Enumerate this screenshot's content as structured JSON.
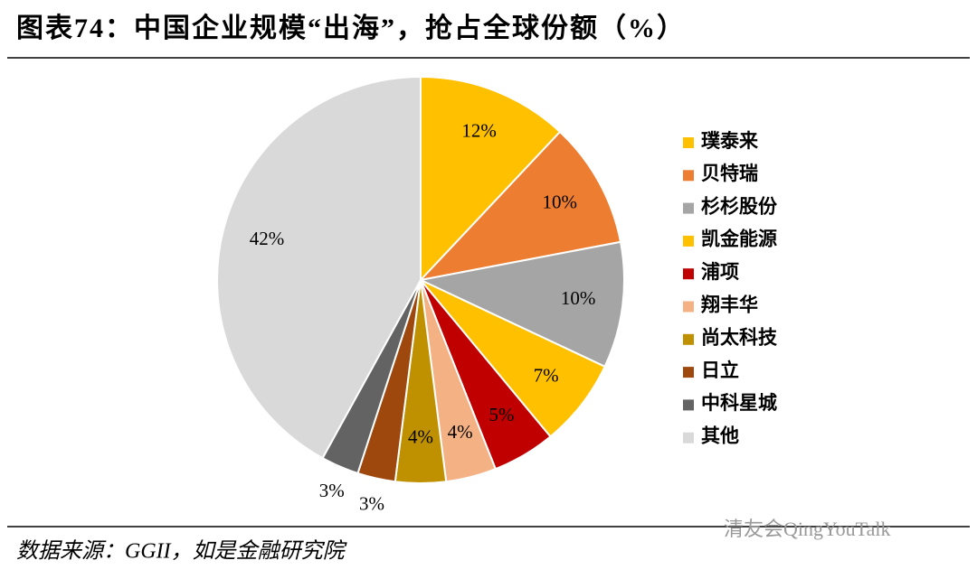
{
  "chart_data": {
    "type": "pie",
    "title": "图表74：中国企业规模“出海”，抢占全球份额（%）",
    "source": "数据来源：GGII，如是金融研究院",
    "watermark": "清友会QingYouTalk",
    "categories": [
      "璞泰来",
      "贝特瑞",
      "杉杉股份",
      "凯金能源",
      "浦项",
      "翔丰华",
      "尚太科技",
      "日立",
      "中科星城",
      "其他"
    ],
    "values": [
      12,
      10,
      10,
      7,
      5,
      4,
      4,
      3,
      3,
      42
    ],
    "value_labels": [
      "12%",
      "10%",
      "10%",
      "7%",
      "5%",
      "4%",
      "4%",
      "3%",
      "3%",
      "42%"
    ],
    "colors": [
      "#FFC000",
      "#ED7D31",
      "#A5A5A5",
      "#FFC000",
      "#C00000",
      "#F4B183",
      "#BF9000",
      "#9E480E",
      "#636363",
      "#D9D9D9"
    ],
    "legend": "right"
  }
}
